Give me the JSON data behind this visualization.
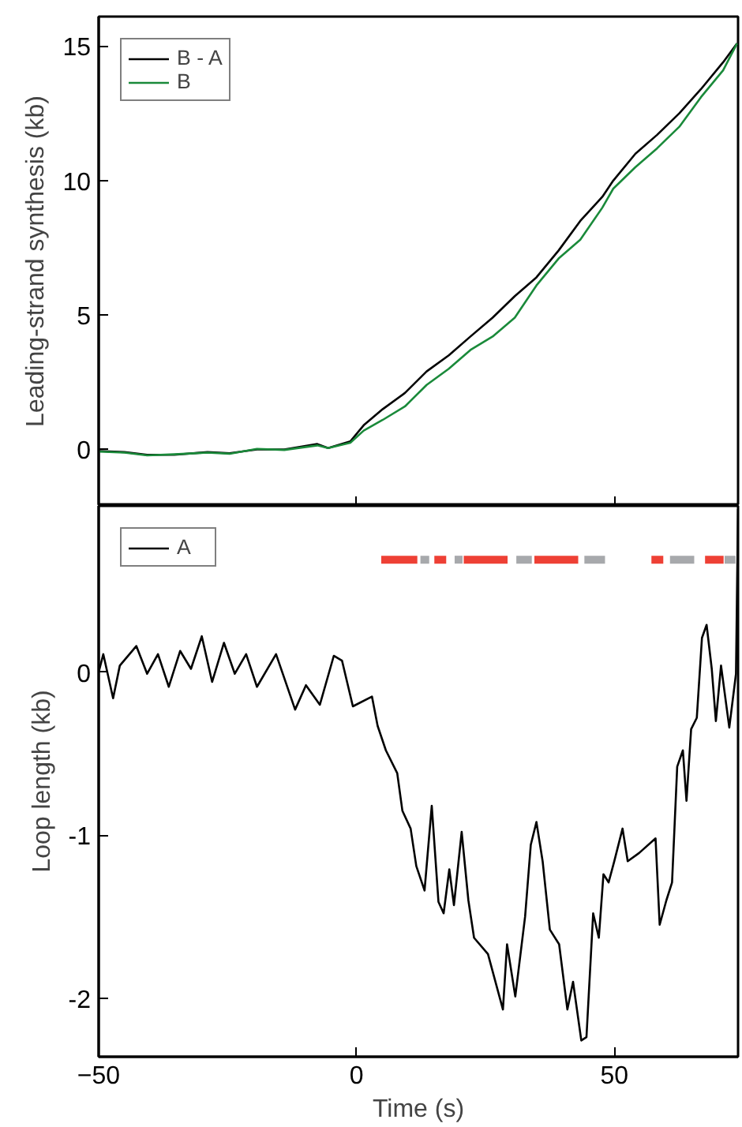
{
  "chart_data": [
    {
      "type": "line",
      "ylabel": "Leading-strand synthesis (kb)",
      "xlim": [
        -50,
        74
      ],
      "xticks": [
        -50,
        0,
        50
      ],
      "ylim": [
        -2.1,
        16.1
      ],
      "yticks": [
        0,
        5,
        10,
        15
      ],
      "tick_labels": "y",
      "grid": false,
      "legend": "top left",
      "series": [
        {
          "name": "B - A",
          "color": "#000000",
          "x": [
            -49.9,
            -45.0,
            -40.6,
            -35.3,
            -28.9,
            -24.6,
            -19.3,
            -14.0,
            -7.6,
            -5.5,
            -1.2,
            1.4,
            5.1,
            9.4,
            13.6,
            17.9,
            22.1,
            26.4,
            30.7,
            34.9,
            39.2,
            43.4,
            47.7,
            49.8,
            54.1,
            58.3,
            62.6,
            66.8,
            71.1,
            73.8
          ],
          "values": [
            -0.06,
            -0.1,
            -0.2,
            -0.2,
            -0.1,
            -0.14,
            0.0,
            0.0,
            0.2,
            0.05,
            0.3,
            0.9,
            1.5,
            2.1,
            2.9,
            3.5,
            4.2,
            4.9,
            5.7,
            6.4,
            7.4,
            8.5,
            9.4,
            10.0,
            11.0,
            11.7,
            12.5,
            13.4,
            14.4,
            15.1
          ]
        },
        {
          "name": "B",
          "color": "#1a8a3a",
          "x": [
            -49.9,
            -45.0,
            -40.6,
            -35.3,
            -28.9,
            -24.6,
            -19.3,
            -14.0,
            -7.6,
            -5.5,
            -1.2,
            1.4,
            5.1,
            9.4,
            13.6,
            17.9,
            22.1,
            26.4,
            30.7,
            34.9,
            39.2,
            43.4,
            47.7,
            49.8,
            54.1,
            58.3,
            62.6,
            66.8,
            71.1,
            73.8
          ],
          "values": [
            -0.08,
            -0.12,
            -0.22,
            -0.18,
            -0.12,
            -0.16,
            0.02,
            -0.02,
            0.15,
            0.05,
            0.25,
            0.7,
            1.1,
            1.6,
            2.4,
            3.0,
            3.7,
            4.2,
            4.9,
            6.1,
            7.1,
            7.8,
            9.0,
            9.7,
            10.5,
            11.2,
            12.0,
            13.1,
            14.1,
            15.1
          ]
        }
      ]
    },
    {
      "type": "line",
      "xlabel": "Time (s)",
      "ylabel": "Loop length (kb)",
      "xlim": [
        -50,
        74
      ],
      "xticks": [
        {
          "value": -50,
          "label": "−50"
        },
        0,
        50
      ],
      "ylim": [
        -2.36,
        1.02
      ],
      "yticks": [
        -2,
        -1,
        0
      ],
      "grid": false,
      "legend": "top left",
      "series": [
        {
          "color": "#ee4035",
          "x": [
            4.8,
            11.8,
            null,
            15.1,
            17.4,
            null,
            20.8,
            29.3,
            null,
            34.5,
            43.0,
            null,
            57.2,
            59.5,
            null,
            67.6,
            71.2
          ],
          "values": [
            0.69,
            0.69,
            null,
            0.69,
            0.69,
            null,
            0.69,
            0.69,
            null,
            0.69,
            0.69,
            null,
            0.69,
            0.69,
            null,
            0.69,
            0.69
          ]
        },
        {
          "type": "scatter",
          "marker": "square",
          "color": "#a7a9ac",
          "x": [
            19.8
          ],
          "values": [
            0.69
          ]
        },
        {
          "color": "#a7a9ac",
          "x": [
            12.4,
            14.1,
            null,
            31.0,
            34.0,
            null,
            44.2,
            48.2,
            null,
            60.8,
            65.5,
            null,
            71.4,
            73.5
          ],
          "values": [
            0.69,
            0.69,
            null,
            0.69,
            0.69,
            null,
            0.69,
            0.69,
            null,
            0.69,
            0.69,
            null,
            0.69,
            0.69
          ]
        },
        {
          "name": "A",
          "color": "#000000",
          "x": [
            -50,
            -49.1,
            -47.2,
            -45.9,
            -42.7,
            -40.6,
            -38.5,
            -36.4,
            -34.2,
            -32.1,
            -30.0,
            -28.0,
            -25.7,
            -23.6,
            -21.4,
            -19.3,
            -15.6,
            -11.9,
            -9.8,
            -7.1,
            -4.4,
            -2.8,
            -0.7,
            3.0,
            4.1,
            5.7,
            7.9,
            8.9,
            10.5,
            11.6,
            13.2,
            14.6,
            15.9,
            16.9,
            18.0,
            18.9,
            20.4,
            21.7,
            22.8,
            25.5,
            28.4,
            29.2,
            30.8,
            32.7,
            33.8,
            34.9,
            36.1,
            37.5,
            39.3,
            40.9,
            42.0,
            43.6,
            44.6,
            45.9,
            47.0,
            47.9,
            48.9,
            50.0,
            51.6,
            52.6,
            54.8,
            58.0,
            58.8,
            60.1,
            61.2,
            62.2,
            63.3,
            64.0,
            64.9,
            66.0,
            67.0,
            67.9,
            68.9,
            69.7,
            70.7,
            72.3,
            73.6,
            74.0
          ],
          "values": [
            0.0,
            0.11,
            -0.16,
            0.04,
            0.16,
            -0.01,
            0.11,
            -0.09,
            0.13,
            0.02,
            0.22,
            -0.06,
            0.18,
            -0.01,
            0.11,
            -0.09,
            0.11,
            -0.23,
            -0.08,
            -0.2,
            0.1,
            0.07,
            -0.21,
            -0.15,
            -0.33,
            -0.48,
            -0.62,
            -0.85,
            -0.96,
            -1.19,
            -1.34,
            -0.82,
            -1.41,
            -1.48,
            -1.21,
            -1.43,
            -0.98,
            -1.4,
            -1.63,
            -1.73,
            -2.07,
            -1.67,
            -1.99,
            -1.5,
            -1.06,
            -0.92,
            -1.16,
            -1.58,
            -1.67,
            -2.07,
            -1.9,
            -2.26,
            -2.24,
            -1.48,
            -1.63,
            -1.24,
            -1.29,
            -1.16,
            -0.96,
            -1.16,
            -1.11,
            -1.02,
            -1.55,
            -1.4,
            -1.29,
            -0.58,
            -0.48,
            -0.79,
            -0.35,
            -0.28,
            0.21,
            0.29,
            0.02,
            -0.3,
            0.04,
            -0.34,
            -0.01,
            1.0
          ]
        }
      ]
    }
  ]
}
